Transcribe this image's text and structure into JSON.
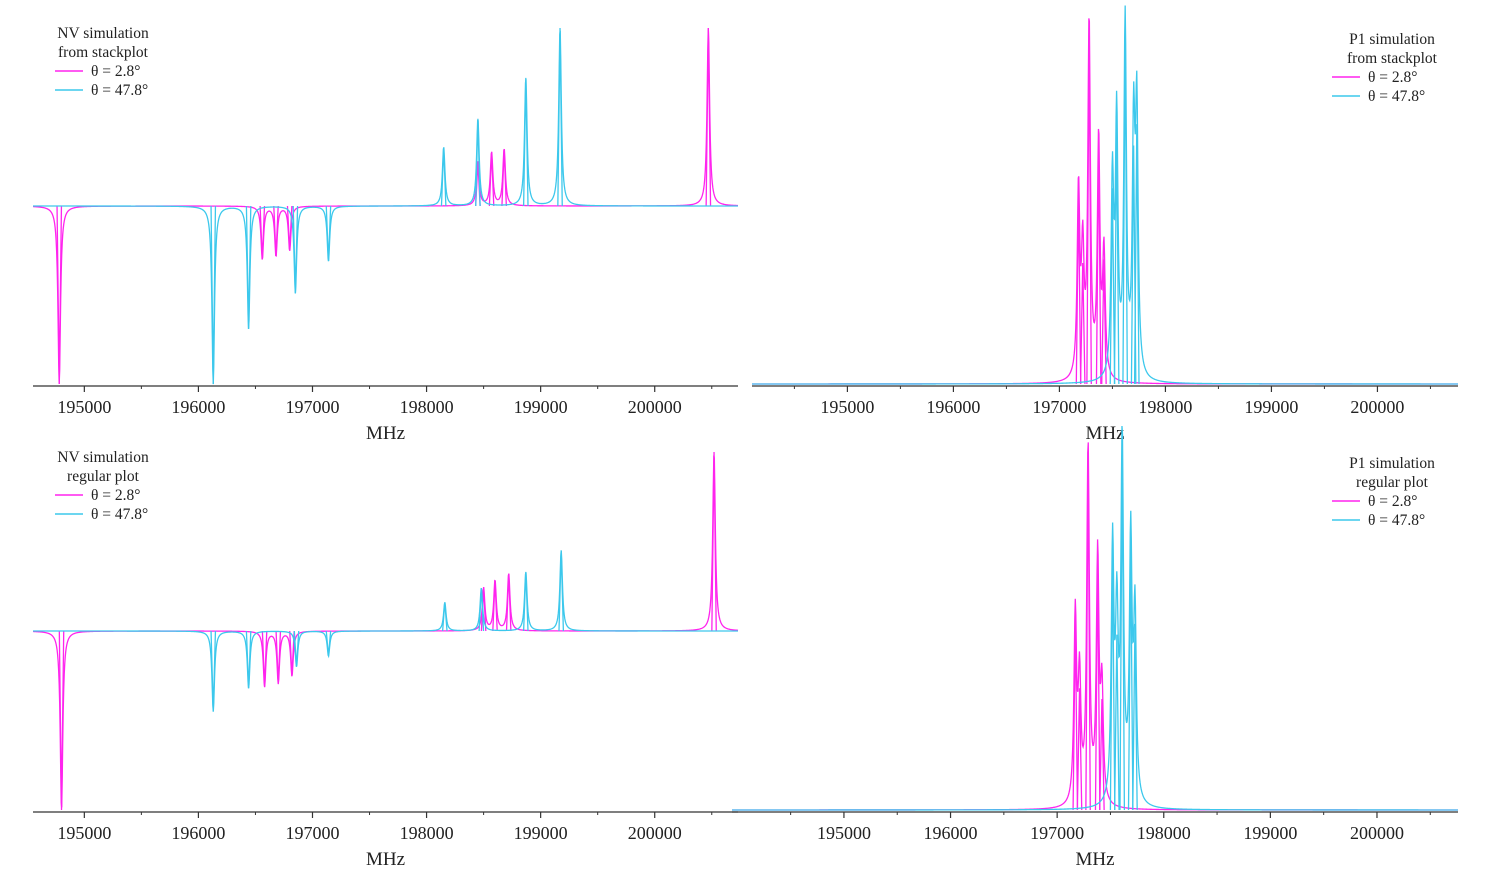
{
  "colors": {
    "theta_2_8": "#ff24ee",
    "theta_47_8": "#3cc8ec",
    "axis": "#333333"
  },
  "charts": [
    {
      "id": "nv-stackplot",
      "legend_title": [
        "NV simulation",
        "from stackplot"
      ],
      "legend_position": "top-left",
      "xlabel": "MHz",
      "xlim": [
        194550,
        200730
      ],
      "ylim": [
        -1.0,
        1.0
      ],
      "xticks": [
        195000,
        196000,
        197000,
        198000,
        199000,
        200000
      ],
      "width": 0.012,
      "series": [
        {
          "name": "θ = 2.8°",
          "color": "#ff24ee",
          "peaks": [
            [
              194780,
              -1.0
            ],
            [
              196560,
              -0.3
            ],
            [
              196680,
              -0.28
            ],
            [
              196800,
              -0.25
            ],
            [
              198450,
              0.25
            ],
            [
              198570,
              0.3
            ],
            [
              198680,
              0.32
            ],
            [
              200470,
              1.0
            ]
          ]
        },
        {
          "name": "θ = 47.8°",
          "color": "#3cc8ec",
          "peaks": [
            [
              196130,
              -1.0
            ],
            [
              196440,
              -0.69
            ],
            [
              196850,
              -0.49
            ],
            [
              197140,
              -0.31
            ],
            [
              198150,
              0.33
            ],
            [
              198450,
              0.49
            ],
            [
              198870,
              0.72
            ],
            [
              199170,
              1.0
            ]
          ]
        }
      ]
    },
    {
      "id": "p1-stackplot",
      "legend_title": [
        "P1 simulation",
        "from stackplot"
      ],
      "legend_position": "top-right",
      "xlabel": "MHz",
      "xlim": [
        194100,
        200760
      ],
      "ylim": [
        0,
        1.0
      ],
      "xticks": [
        195000,
        196000,
        197000,
        198000,
        199000,
        200000
      ],
      "width": 0.012,
      "series": [
        {
          "name": "θ = 2.8°",
          "color": "#ff24ee",
          "peaks": [
            [
              197180,
              0.53
            ],
            [
              197220,
              0.34
            ],
            [
              197280,
              1.0
            ],
            [
              197370,
              0.67
            ],
            [
              197420,
              0.35
            ]
          ]
        },
        {
          "name": "θ = 47.8°",
          "color": "#3cc8ec",
          "peaks": [
            [
              197500,
              0.55
            ],
            [
              197540,
              0.72
            ],
            [
              197620,
              1.0
            ],
            [
              197700,
              0.67
            ],
            [
              197730,
              0.73
            ]
          ]
        }
      ]
    },
    {
      "id": "nv-regular",
      "legend_title": [
        "NV simulation",
        "regular plot"
      ],
      "legend_position": "top-left",
      "xlabel": "MHz",
      "xlim": [
        194550,
        200730
      ],
      "ylim": [
        -1.0,
        1.0
      ],
      "xticks": [
        195000,
        196000,
        197000,
        198000,
        199000,
        200000
      ],
      "width": 0.012,
      "series": [
        {
          "name": "θ = 2.8°",
          "color": "#ff24ee",
          "peaks": [
            [
              194800,
              -1.0
            ],
            [
              196580,
              -0.31
            ],
            [
              196700,
              -0.29
            ],
            [
              196820,
              -0.25
            ],
            [
              198500,
              0.24
            ],
            [
              198600,
              0.28
            ],
            [
              198720,
              0.32
            ],
            [
              200520,
              1.0
            ]
          ]
        },
        {
          "name": "θ = 47.8°",
          "color": "#3cc8ec",
          "peaks": [
            [
              196130,
              -0.45
            ],
            [
              196440,
              -0.32
            ],
            [
              196860,
              -0.2
            ],
            [
              197140,
              -0.14
            ],
            [
              198160,
              0.16
            ],
            [
              198480,
              0.24
            ],
            [
              198870,
              0.33
            ],
            [
              199180,
              0.45
            ]
          ]
        }
      ]
    },
    {
      "id": "p1-regular",
      "legend_title": [
        "P1 simulation",
        "regular plot"
      ],
      "legend_position": "top-right",
      "xlabel": "MHz",
      "xlim": [
        193950,
        200760
      ],
      "ylim": [
        0,
        1.0
      ],
      "xticks": [
        195000,
        196000,
        197000,
        198000,
        199000,
        200000
      ],
      "width": 0.012,
      "series": [
        {
          "name": "θ = 2.8°",
          "color": "#ff24ee",
          "peaks": [
            [
              197170,
              0.53
            ],
            [
              197210,
              0.34
            ],
            [
              197290,
              1.0
            ],
            [
              197380,
              0.69
            ],
            [
              197420,
              0.31
            ]
          ]
        },
        {
          "name": "θ = 47.8°",
          "color": "#3cc8ec",
          "peaks": [
            [
              197520,
              0.71
            ],
            [
              197560,
              0.49
            ],
            [
              197610,
              1.0
            ],
            [
              197690,
              0.73
            ],
            [
              197730,
              0.52
            ]
          ]
        }
      ]
    }
  ]
}
